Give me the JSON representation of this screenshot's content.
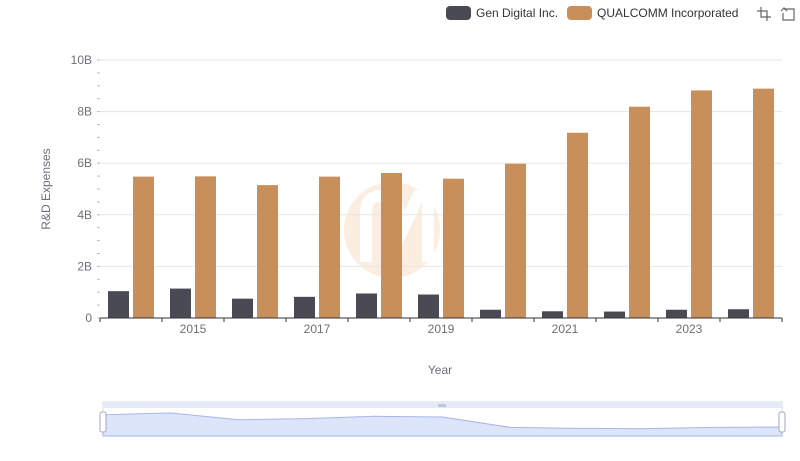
{
  "legend": {
    "items": [
      {
        "label": "Gen Digital Inc.",
        "color": "#4a4a55"
      },
      {
        "label": "QUALCOMM Incorporated",
        "color": "#c98f5a"
      }
    ]
  },
  "toolbox": {
    "icons": [
      "zoom-icon",
      "zoom-reset-icon"
    ]
  },
  "colors": {
    "gen_digital": "#4a4a55",
    "qualcomm": "#c98f5a",
    "grid": "#e6e6e6",
    "watermark": "#fbeee0",
    "zoom_fill": "#dce5fa",
    "zoom_line": "#a7b7e6"
  },
  "chart_data": {
    "type": "bar",
    "xlabel": "Year",
    "ylabel": "R&D Expenses",
    "ylim": [
      0,
      10000000000
    ],
    "y_ticks": [
      "0",
      "2B",
      "4B",
      "6B",
      "8B",
      "10B"
    ],
    "x_tick_labels": [
      "2015",
      "2017",
      "2019",
      "2021",
      "2023"
    ],
    "categories": [
      "2014",
      "2015",
      "2016",
      "2017",
      "2018",
      "2019",
      "2020",
      "2021",
      "2022",
      "2023",
      "2024"
    ],
    "series": [
      {
        "name": "Gen Digital Inc.",
        "values": [
          1040000000,
          1140000000,
          750000000,
          820000000,
          950000000,
          910000000,
          320000000,
          260000000,
          250000000,
          320000000,
          340000000
        ]
      },
      {
        "name": "QUALCOMM Incorporated",
        "values": [
          5480000000,
          5490000000,
          5150000000,
          5480000000,
          5620000000,
          5400000000,
          5980000000,
          7180000000,
          8190000000,
          8820000000,
          8890000000
        ]
      }
    ],
    "grid": true,
    "legend_position": "top-right",
    "data_zoom": {
      "start_percent": 0,
      "end_percent": 100
    }
  }
}
